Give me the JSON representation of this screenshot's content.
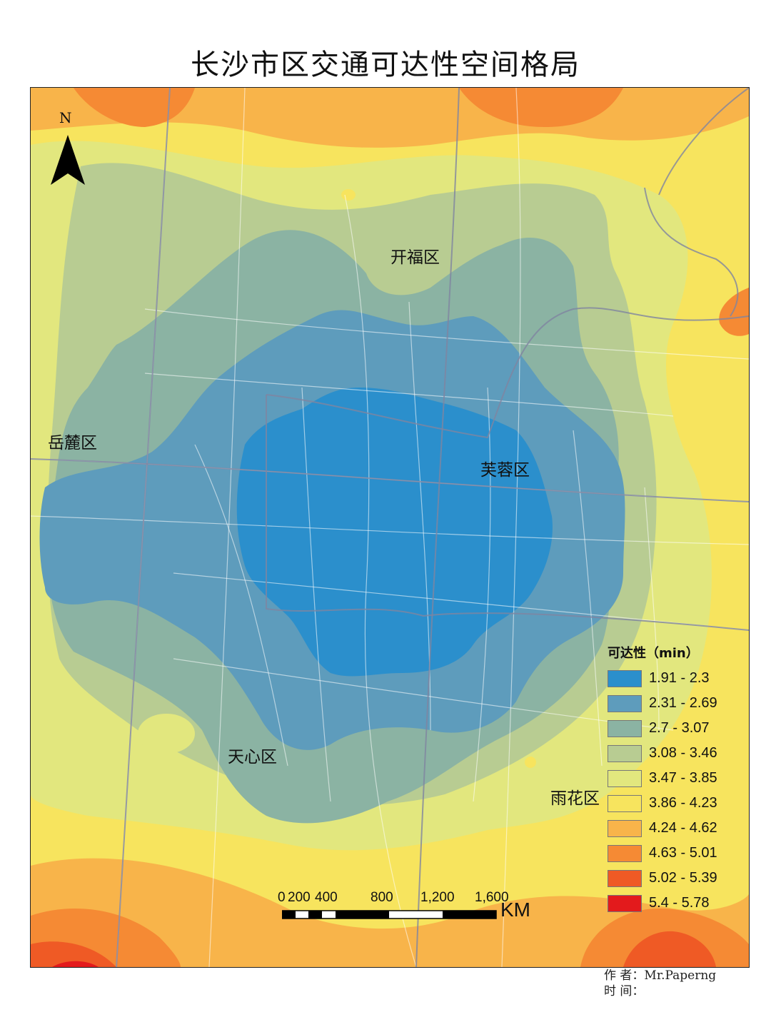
{
  "title": "长沙市区交通可达性空间格局",
  "north_label": "N",
  "districts": [
    {
      "id": "kaifu",
      "name": "开福区"
    },
    {
      "id": "yuelu",
      "name": "岳麓区"
    },
    {
      "id": "furong",
      "name": "芙蓉区"
    },
    {
      "id": "tianxin",
      "name": "天心区"
    },
    {
      "id": "yuhua",
      "name": "雨花区"
    }
  ],
  "legend": {
    "title": "可达性（min）",
    "classes": [
      {
        "label": "1.91 - 2.3",
        "color": "#2b8fcc"
      },
      {
        "label": "2.31 - 2.69",
        "color": "#5e9cbc"
      },
      {
        "label": "2.7 - 3.07",
        "color": "#8bb3a3"
      },
      {
        "label": "3.08 - 3.46",
        "color": "#b8cc92"
      },
      {
        "label": "3.47 - 3.85",
        "color": "#e2e77e"
      },
      {
        "label": "3.86 - 4.23",
        "color": "#f7e45e"
      },
      {
        "label": "4.24 - 4.62",
        "color": "#f8b44a"
      },
      {
        "label": "4.63 - 5.01",
        "color": "#f58a34"
      },
      {
        "label": "5.02 - 5.39",
        "color": "#ef5a25"
      },
      {
        "label": "5.4 - 5.78",
        "color": "#e31a1c"
      }
    ]
  },
  "scale_bar": {
    "ticks": [
      "0",
      "200",
      "400",
      "800",
      "1,200",
      "1,600"
    ],
    "unit": "KM"
  },
  "credits": {
    "author_label": "作 者：",
    "author": "Mr.Paperng",
    "time_label": "时 间："
  }
}
